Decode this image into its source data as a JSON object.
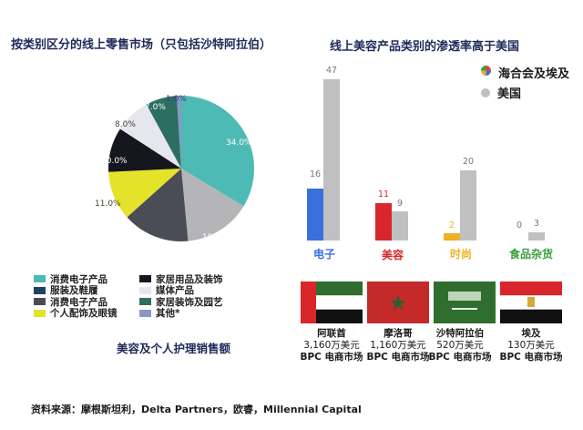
{
  "left_panel": {
    "title": "按类别区分的线上零售市场（只包括沙特阿拉伯）",
    "subtitle": "美容及个人护理销售额",
    "legend": [
      {
        "label": "消费电子产品",
        "color": "#4ebab5"
      },
      {
        "label": "服装及鞋履",
        "color": "#1d4463"
      },
      {
        "label": "消费电子产品",
        "color": "#4a4d55"
      },
      {
        "label": "个人配饰及眼镜",
        "color": "#e5e22a"
      },
      {
        "label": "家居用品及装饰",
        "color": "#16161f"
      },
      {
        "label": "媒体产品",
        "color": "#e6e6ee"
      },
      {
        "label": "家居装饰及园艺",
        "color": "#2d6e62"
      },
      {
        "label": "其他*",
        "color": "#8b98c6"
      }
    ]
  },
  "right_panel": {
    "title": "线上美容产品类别的渗透率高于美国",
    "legend": [
      {
        "label": "海合会及埃及",
        "icon": "multicolor-pie-dot-icon"
      },
      {
        "label": "美国",
        "color": "#c0c0c2"
      }
    ],
    "countries": [
      {
        "name": "阿联酋",
        "value": "3,160万美元",
        "market": "BPC 电商市场"
      },
      {
        "name": "摩洛哥",
        "value": "1,160万美元",
        "market": "BPC 电商市场"
      },
      {
        "name": "沙特阿拉伯",
        "value": "520万美元",
        "market": "BPC 电商市场"
      },
      {
        "name": "埃及",
        "value": "130万美元",
        "market": "BPC 电商市场"
      }
    ]
  },
  "source": "资料来源：摩根斯坦利，Delta Partners，欧睿，Millennial Capital",
  "chart_data": [
    {
      "type": "pie",
      "title": "按类别区分的线上零售市场（只包括沙特阿拉伯）",
      "subtitle": "美容及个人护理销售额",
      "slices": [
        {
          "label": "消费电子产品",
          "value": 34.0,
          "color": "#4ebab5",
          "display": "34.0%"
        },
        {
          "label": "消费电子产品(灰)",
          "value": 15.0,
          "color": "#b5b5b8",
          "display": "15.0%"
        },
        {
          "label": "消费电子产品",
          "value": 15.0,
          "color": "#4a4d55",
          "display": "15.0%"
        },
        {
          "label": "个人配饰及眼镜",
          "value": 11.0,
          "color": "#e5e22a",
          "display": "11.0%"
        },
        {
          "label": "家居用品及装饰",
          "value": 10.0,
          "color": "#16161f",
          "display": "10.0%"
        },
        {
          "label": "媒体产品",
          "value": 8.0,
          "color": "#e6e6ee",
          "display": "8.0%"
        },
        {
          "label": "家居装饰及园艺",
          "value": 7.0,
          "color": "#2d6e62",
          "display": "7.0%"
        },
        {
          "label": "其他*",
          "value": 1.0,
          "color": "#8b98c6",
          "display": "1.0%"
        }
      ],
      "legend_position": "bottom"
    },
    {
      "type": "bar",
      "title": "线上美容产品类别的渗透率高于美国",
      "categories": [
        "电子",
        "美容",
        "时尚",
        "食品杂货"
      ],
      "category_colors": [
        "#3a6fdc",
        "#d8262a",
        "#f0b024",
        "#3aa040"
      ],
      "series": [
        {
          "name": "海合会及埃及",
          "values": [
            16,
            11,
            2,
            0
          ]
        },
        {
          "name": "美国",
          "values": [
            47,
            9,
            20,
            3
          ],
          "color": "#c0c0c2"
        }
      ],
      "ylim": [
        0,
        50
      ],
      "grid": false,
      "legend_position": "top-right"
    }
  ]
}
